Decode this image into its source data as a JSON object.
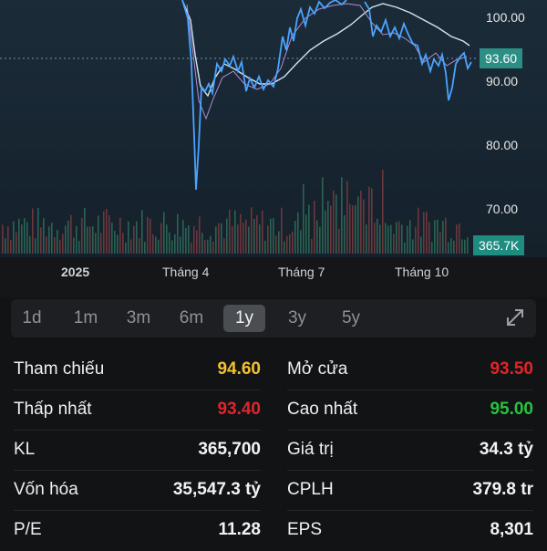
{
  "chart": {
    "price_labels": [
      "100.00",
      "90.00",
      "80.00",
      "70.00"
    ],
    "current_price": "93.60",
    "current_price_color": "#2b8f86",
    "volume_label": "365.7K",
    "volume_label_color": "#1e8d80",
    "x_labels": [
      "2025",
      "Tháng 4",
      "Tháng 7",
      "Tháng 10"
    ],
    "line_color": "#4aa3ff",
    "ma_color": "#cfe6f2",
    "ma2_color": "#b48ad6"
  },
  "periods": {
    "items": [
      "1d",
      "1m",
      "3m",
      "6m",
      "1y",
      "3y",
      "5y"
    ],
    "active": "1y",
    "expand_icon": "expand-icon"
  },
  "stats": {
    "left": [
      {
        "label": "Tham chiếu",
        "value": "94.60",
        "color": "#f2c230"
      },
      {
        "label": "Thấp nhất",
        "value": "93.40",
        "color": "#e0252b"
      },
      {
        "label": "KL",
        "value": "365,700",
        "color": "#f2f3f5"
      },
      {
        "label": "Vốn hóa",
        "value": "35,547.3 tỷ",
        "color": "#f2f3f5"
      },
      {
        "label": "P/E",
        "value": "11.28",
        "color": "#f2f3f5"
      }
    ],
    "right": [
      {
        "label": "Mở cửa",
        "value": "93.50",
        "color": "#e0252b"
      },
      {
        "label": "Cao nhất",
        "value": "95.00",
        "color": "#28c240"
      },
      {
        "label": "Giá trị",
        "value": "34.3 tỷ",
        "color": "#f2f3f5"
      },
      {
        "label": "CPLH",
        "value": "379.8 tr",
        "color": "#f2f3f5"
      },
      {
        "label": "EPS",
        "value": "8,301",
        "color": "#f2f3f5"
      }
    ]
  }
}
